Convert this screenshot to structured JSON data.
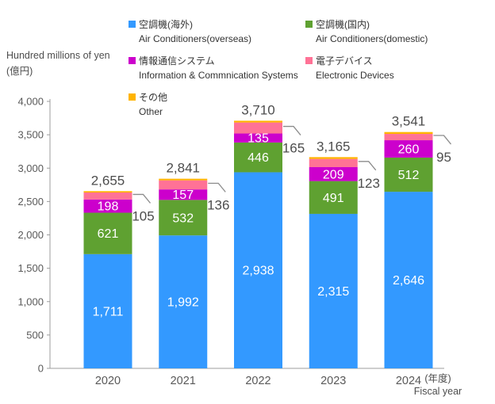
{
  "y_axis": {
    "unit_line1": "Hundred millions of yen",
    "unit_line2": "(億円)",
    "max": 4000,
    "step": 500,
    "tick_labels": [
      "0",
      "500",
      "1,000",
      "1,500",
      "2,000",
      "2,500",
      "3,000",
      "3,500",
      "4,000"
    ]
  },
  "x_axis": {
    "label_ja": "(年度)",
    "label_en": "Fiscal year"
  },
  "colors": {
    "axis": "#9c9c9c",
    "total_text": "#4d4d4d",
    "tick_text": "#595959",
    "segment_text": "#ffffff",
    "callout_line": "#8c8c8c"
  },
  "chart_data": {
    "type": "bar",
    "stacked": true,
    "title": "",
    "xlabel": "(年度) Fiscal year",
    "ylabel": "Hundred millions of yen (億円)",
    "ylim": [
      0,
      4000
    ],
    "grid": false,
    "legend_position": "top",
    "categories": [
      "2020",
      "2021",
      "2022",
      "2023",
      "2024"
    ],
    "series": [
      {
        "slug": "air-conditioners-overseas",
        "name_ja": "空調機(海外)",
        "name_en": "Air Conditioners(overseas)",
        "color": "#3399FF",
        "values": [
          1711,
          1992,
          2938,
          2315,
          2646
        ],
        "label_style": "inside"
      },
      {
        "slug": "air-conditioners-domestic",
        "name_ja": "空調機(国内)",
        "name_en": "Air Conditioners(domestic)",
        "color": "#5FA131",
        "values": [
          621,
          532,
          446,
          491,
          512
        ],
        "label_style": "inside"
      },
      {
        "slug": "information-communication-systems",
        "name_ja": "情報通信システム",
        "name_en": "Information & Commnication Systems",
        "color": "#CC00CC",
        "values": [
          198,
          157,
          135,
          209,
          260
        ],
        "label_style": "inside"
      },
      {
        "slug": "electronic-devices",
        "name_ja": "電子デバイス",
        "name_en": "Electronic Devices",
        "color": "#FF7296",
        "values": [
          105,
          136,
          165,
          123,
          95
        ],
        "label_style": "callout"
      },
      {
        "slug": "other",
        "name_ja": "その他",
        "name_en": "Other",
        "color": "#FFB400",
        "remainder": true,
        "label_style": "none"
      }
    ],
    "totals": [
      2655,
      2841,
      3710,
      3165,
      3541
    ]
  }
}
